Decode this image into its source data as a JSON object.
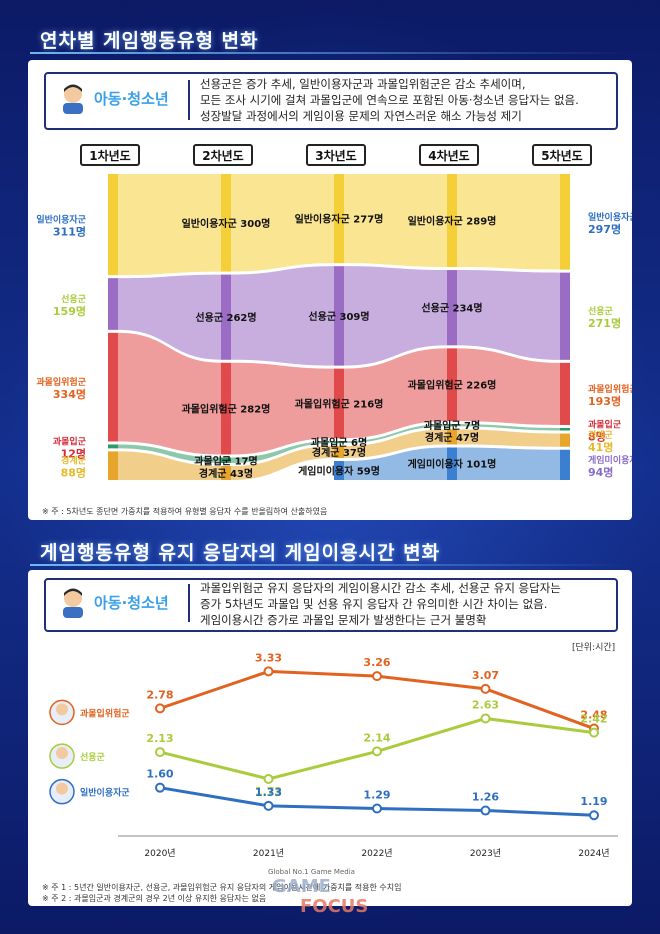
{
  "section1": {
    "title": "연차별 게임행동유형 변화",
    "badge": "아동·청소년",
    "text": [
      "선용군은 증가 추세, 일반이용자군과 과몰입위험군은 감소 추세이며,",
      "모든 조사 시기에 걸쳐 과몰입군에 연속으로 포함된 아동·청소년 응답자는 없음.",
      "성장발달 과정에서의 게임이용 문제의 자연스러운 해소 가능성 제기"
    ],
    "note": "※ 주 : 5차년도 종단면 가중치를 적용하여 유형별 응답자 수를 반올림하여 산출하였음"
  },
  "section2": {
    "title": "게임행동유형 유지 응답자의 게임이용시간 변화",
    "badge": "아동·청소년",
    "text": [
      "과몰입위험군 유지 응답자의 게임이용시간 감소 추세, 선용군 유지 응답자는",
      "증가 5차년도 과몰입 및 선용 유지 응답자 간 유의미한 시간 차이는 없음.",
      "게임이용시간 증가로 과몰입 문제가 발생한다는 근거 불명확"
    ],
    "unit": "[단위:시간]",
    "notes": [
      "※ 주 1 : 5년간 일반이용자군, 선용군, 과몰입위험군 유지 응답자의 게임이용시간에 가중치를 적용한 수치임",
      "※ 주 2 : 과몰입군과 경계군의 경우 2년 이상 유지한 응답자는 없음"
    ]
  },
  "colors": {
    "general": "#2f6fc2",
    "seon": "#a9cc3c",
    "risk": "#e2621f",
    "addict": "#d62c3a",
    "border": "#e8b92a",
    "nongame": "#8a6cc7",
    "s_general": "#f4cf38",
    "s_seon": "#9b6cc4",
    "s_risk": "#e04a4a",
    "s_addict": "#2f9a6a",
    "s_border": "#e8a52b",
    "s_nongame": "#3b7fd0"
  },
  "chart_data": [
    {
      "type": "sankey",
      "years": [
        "1차년도",
        "2차년도",
        "3차년도",
        "4차년도",
        "5차년도"
      ],
      "unit": "명",
      "nodes": [
        [
          {
            "label": "일반이용자군",
            "value": 311
          },
          {
            "label": "선용군",
            "value": 159
          },
          {
            "label": "과몰입위험군",
            "value": 334
          },
          {
            "label": "과몰입군",
            "value": 12
          },
          {
            "label": "경계군",
            "value": 88
          }
        ],
        [
          {
            "label": "일반이용자군",
            "value": 300
          },
          {
            "label": "선용군",
            "value": 262
          },
          {
            "label": "과몰입위험군",
            "value": 282
          },
          {
            "label": "과몰입군",
            "value": 17
          },
          {
            "label": "경계군",
            "value": 43
          }
        ],
        [
          {
            "label": "일반이용자군",
            "value": 277
          },
          {
            "label": "선용군",
            "value": 309
          },
          {
            "label": "과몰입위험군",
            "value": 216
          },
          {
            "label": "과몰입군",
            "value": 6
          },
          {
            "label": "경계군",
            "value": 37
          },
          {
            "label": "게임미이용자",
            "value": 59
          }
        ],
        [
          {
            "label": "일반이용자군",
            "value": 289
          },
          {
            "label": "선용군",
            "value": 234
          },
          {
            "label": "과몰입위험군",
            "value": 226
          },
          {
            "label": "과몰입군",
            "value": 7
          },
          {
            "label": "경계군",
            "value": 47
          },
          {
            "label": "게임미이용자",
            "value": 101
          }
        ],
        [
          {
            "label": "일반이용자군",
            "value": 297
          },
          {
            "label": "선용군",
            "value": 271
          },
          {
            "label": "과몰입위험군",
            "value": 193
          },
          {
            "label": "과몰입군",
            "value": 8
          },
          {
            "label": "경계군",
            "value": 41
          },
          {
            "label": "게임미이용자",
            "value": 94
          }
        ]
      ]
    },
    {
      "type": "line",
      "x": [
        "2020년",
        "2021년",
        "2022년",
        "2023년",
        "2024년"
      ],
      "series": [
        {
          "name": "과몰입위험군",
          "values": [
            2.78,
            3.33,
            3.26,
            3.07,
            2.48
          ]
        },
        {
          "name": "선용군",
          "values": [
            2.13,
            1.73,
            2.14,
            2.63,
            2.42
          ]
        },
        {
          "name": "일반이용자군",
          "values": [
            1.6,
            1.33,
            1.29,
            1.26,
            1.19
          ]
        }
      ],
      "ylim": [
        1.0,
        3.5
      ]
    }
  ],
  "watermark": {
    "top": "Global No.1 Game Media",
    "brand1": "GAME",
    "brand2": "FOCUS"
  }
}
